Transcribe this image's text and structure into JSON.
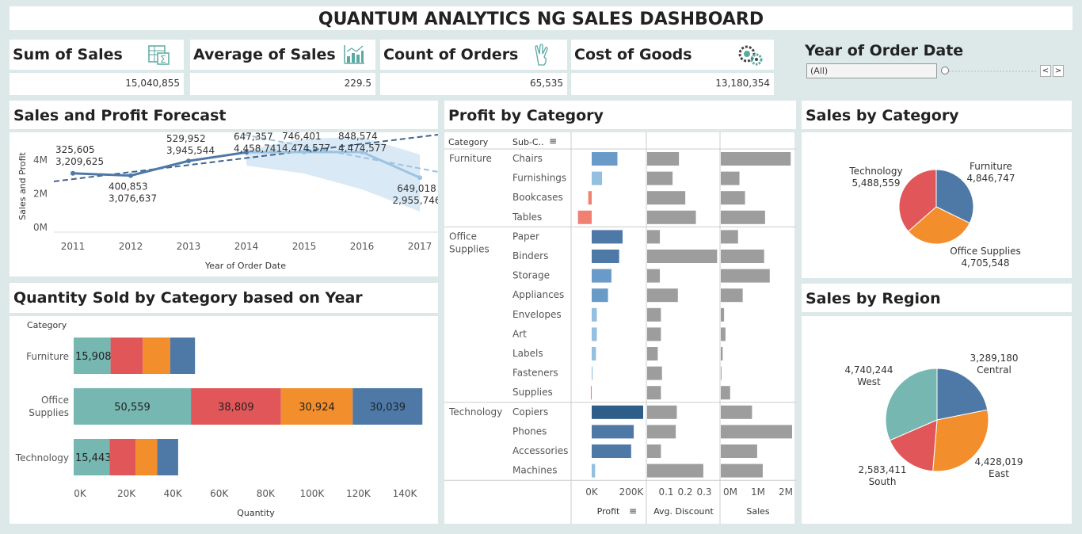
{
  "title": "QUANTUM ANALYTICS NG SALES DASHBOARD",
  "kpis": [
    {
      "label": "Sum of Sales",
      "value": "15,040,855",
      "icon": "spreadsheet-sum-icon"
    },
    {
      "label": "Average of Sales",
      "value": "229.5",
      "icon": "bar-chart-icon"
    },
    {
      "label": "Count of Orders",
      "value": "65,535",
      "icon": "hand-count-icon"
    },
    {
      "label": "Cost of Goods",
      "value": "13,180,354",
      "icon": "gears-icon"
    }
  ],
  "filter": {
    "label": "Year of Order Date",
    "value": "(All)",
    "prev": "<",
    "next": ">"
  },
  "colors": {
    "teal": "#76b7b2",
    "red": "#e15759",
    "orange": "#f28e2b",
    "blue": "#4e79a7",
    "gray": "#9d9d9d",
    "pink": "#f28072"
  },
  "chart_data": [
    {
      "type": "line",
      "title": "Sales and Profit Forecast",
      "xlabel": "Year of Order Date",
      "ylabel": "Sales and Profit",
      "yticks": [
        "0M",
        "2M",
        "4M"
      ],
      "ylim": [
        0,
        5000000
      ],
      "x": [
        "2011",
        "2012",
        "2013",
        "2014",
        "2015",
        "2016",
        "2017"
      ],
      "series": [
        {
          "values": [
            3209625,
            3076637,
            3945544,
            4458741,
            4474577,
            4474577,
            2955746
          ]
        }
      ],
      "labels": [
        {
          "year": "2011",
          "line1": "325,605",
          "line2": "3,209,625"
        },
        {
          "year": "2012",
          "line1": "400,853",
          "line2": "3,076,637"
        },
        {
          "year": "2013",
          "line1": "529,952",
          "line2": "3,945,544"
        },
        {
          "year": "2014",
          "line1": "647,357",
          "line2": "4,458,741"
        },
        {
          "year": "2015",
          "line1": "746,401",
          "line2": "4,474,577"
        },
        {
          "year": "2016",
          "line1": "848,574",
          "line2": "4,474,577"
        },
        {
          "year": "2017",
          "line1": "649,018",
          "line2": "2,955,746"
        }
      ]
    },
    {
      "type": "bar",
      "title": "Quantity Sold by Category based on Year",
      "header": "Category",
      "xlabel": "Quantity",
      "xticks": [
        "0K",
        "20K",
        "40K",
        "60K",
        "80K",
        "100K",
        "120K",
        "140K"
      ],
      "xlim": [
        0,
        150000
      ],
      "categories": [
        "Furniture",
        "Office Supplies",
        "Technology"
      ],
      "stacks": [
        [
          15908,
          13900,
          11800,
          10700
        ],
        [
          50559,
          38809,
          30924,
          30039
        ],
        [
          15443,
          11200,
          9400,
          9000
        ]
      ],
      "segment_labels": [
        [
          "15,908",
          "",
          "",
          ""
        ],
        [
          "50,559",
          "38,809",
          "30,924",
          "30,039"
        ],
        [
          "15,443",
          "",
          "",
          ""
        ]
      ]
    },
    {
      "type": "bar",
      "title": "Profit by Category",
      "headers": {
        "category": "Category",
        "sub": "Sub-C..",
        "profit": "Profit",
        "discount": "Avg. Discount",
        "sales": "Sales"
      },
      "profit_ticks": [
        "0K",
        "200K"
      ],
      "discount_ticks": [
        "0.1",
        "0.2",
        "0.3"
      ],
      "sales_ticks": [
        "0M",
        "1M",
        "2M"
      ],
      "groups": [
        {
          "category": "Furniture",
          "items": [
            {
              "name": "Chairs",
              "profit": 150000,
              "discount": 0.15,
              "sales": 1500000
            },
            {
              "name": "Furnishings",
              "profit": 60000,
              "discount": 0.12,
              "sales": 400000
            },
            {
              "name": "Bookcases",
              "profit": -20000,
              "discount": 0.18,
              "sales": 520000
            },
            {
              "name": "Tables",
              "profit": -80000,
              "discount": 0.23,
              "sales": 950000
            }
          ]
        },
        {
          "category": "Office Supplies",
          "items": [
            {
              "name": "Paper",
              "profit": 180000,
              "discount": 0.06,
              "sales": 370000
            },
            {
              "name": "Binders",
              "profit": 160000,
              "discount": 0.33,
              "sales": 930000
            },
            {
              "name": "Storage",
              "profit": 115000,
              "discount": 0.06,
              "sales": 1050000
            },
            {
              "name": "Appliances",
              "profit": 95000,
              "discount": 0.145,
              "sales": 470000
            },
            {
              "name": "Envelopes",
              "profit": 30000,
              "discount": 0.065,
              "sales": 70000
            },
            {
              "name": "Art",
              "profit": 30000,
              "discount": 0.065,
              "sales": 100000
            },
            {
              "name": "Labels",
              "profit": 25000,
              "discount": 0.05,
              "sales": 40000
            },
            {
              "name": "Fasteners",
              "profit": 5000,
              "discount": 0.07,
              "sales": 15000
            },
            {
              "name": "Supplies",
              "profit": -5000,
              "discount": 0.065,
              "sales": 200000
            }
          ]
        },
        {
          "category": "Technology",
          "items": [
            {
              "name": "Copiers",
              "profit": 300000,
              "discount": 0.14,
              "sales": 670000
            },
            {
              "name": "Phones",
              "profit": 245000,
              "discount": 0.135,
              "sales": 1530000
            },
            {
              "name": "Accessories",
              "profit": 230000,
              "discount": 0.065,
              "sales": 780000
            },
            {
              "name": "Machines",
              "profit": 20000,
              "discount": 0.265,
              "sales": 900000
            }
          ]
        }
      ]
    },
    {
      "type": "pie",
      "title": "Sales by Category",
      "slices": [
        {
          "label": "Furniture",
          "value": 4846747,
          "display": "4,846,747"
        },
        {
          "label": "Office Supplies",
          "value": 4705548,
          "display": "4,705,548"
        },
        {
          "label": "Technology",
          "value": 5488559,
          "display": "5,488,559"
        }
      ]
    },
    {
      "type": "pie",
      "title": "Sales by Region",
      "slices": [
        {
          "label": "Central",
          "value": 3289180,
          "display": "3,289,180"
        },
        {
          "label": "East",
          "value": 4428019,
          "display": "4,428,019"
        },
        {
          "label": "South",
          "value": 2583411,
          "display": "2,583,411"
        },
        {
          "label": "West",
          "value": 4740244,
          "display": "4,740,244"
        }
      ]
    }
  ]
}
